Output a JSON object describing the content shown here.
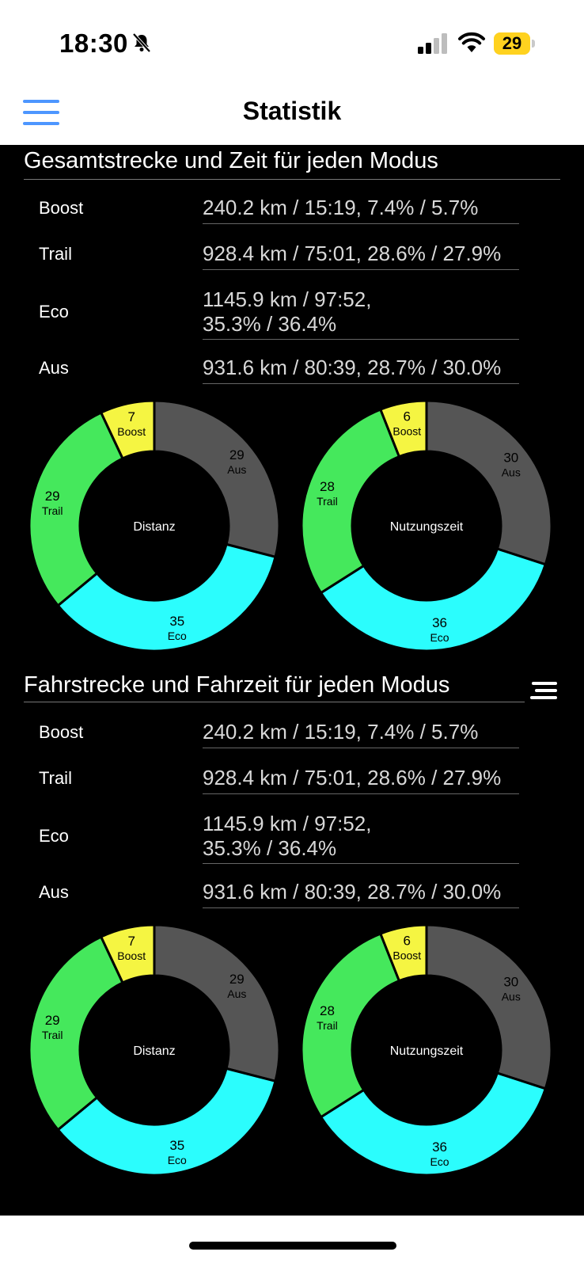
{
  "status_bar": {
    "time": "18:30",
    "battery": "29"
  },
  "nav": {
    "title": "Statistik"
  },
  "colors": {
    "boost": "#f5f542",
    "trail": "#45e85c",
    "eco": "#2bfdfd",
    "aus": "#555555",
    "background": "#000000"
  },
  "sections": [
    {
      "title": "Gesamtstrecke und Zeit für jeden Modus",
      "rows": [
        {
          "label": "Boost",
          "value_lines": [
            "240.2 km / 15:19, 7.4% / 5.7%"
          ]
        },
        {
          "label": "Trail",
          "value_lines": [
            "928.4 km / 75:01, 28.6% / 27.9%"
          ]
        },
        {
          "label": "Eco",
          "value_lines": [
            "1145.9 km / 97:52,",
            "35.3% / 36.4%"
          ]
        },
        {
          "label": "Aus",
          "value_lines": [
            "931.6 km / 80:39, 28.7% / 30.0%"
          ]
        }
      ],
      "charts": [
        {
          "center_label": "Distanz",
          "segments": [
            {
              "name": "Aus",
              "value": 29
            },
            {
              "name": "Eco",
              "value": 35
            },
            {
              "name": "Trail",
              "value": 29
            },
            {
              "name": "Boost",
              "value": 7
            }
          ]
        },
        {
          "center_label": "Nutzungszeit",
          "segments": [
            {
              "name": "Aus",
              "value": 30
            },
            {
              "name": "Eco",
              "value": 36
            },
            {
              "name": "Trail",
              "value": 28
            },
            {
              "name": "Boost",
              "value": 6
            }
          ]
        }
      ]
    },
    {
      "title": "Fahrstrecke und Fahrzeit für jeden Modus",
      "rows": [
        {
          "label": "Boost",
          "value_lines": [
            "240.2 km / 15:19, 7.4% / 5.7%"
          ]
        },
        {
          "label": "Trail",
          "value_lines": [
            "928.4 km / 75:01, 28.6% / 27.9%"
          ]
        },
        {
          "label": "Eco",
          "value_lines": [
            "1145.9 km / 97:52,",
            "35.3% / 36.4%"
          ]
        },
        {
          "label": "Aus",
          "value_lines": [
            "931.6 km / 80:39, 28.7% / 30.0%"
          ]
        }
      ],
      "charts": [
        {
          "center_label": "Distanz",
          "segments": [
            {
              "name": "Aus",
              "value": 29
            },
            {
              "name": "Eco",
              "value": 35
            },
            {
              "name": "Trail",
              "value": 29
            },
            {
              "name": "Boost",
              "value": 7
            }
          ]
        },
        {
          "center_label": "Nutzungszeit",
          "segments": [
            {
              "name": "Aus",
              "value": 30
            },
            {
              "name": "Eco",
              "value": 36
            },
            {
              "name": "Trail",
              "value": 28
            },
            {
              "name": "Boost",
              "value": 6
            }
          ]
        }
      ]
    }
  ],
  "chart_data": [
    {
      "type": "pie",
      "title": "Distanz",
      "categories": [
        "Aus",
        "Eco",
        "Trail",
        "Boost"
      ],
      "values": [
        29,
        35,
        29,
        7
      ]
    },
    {
      "type": "pie",
      "title": "Nutzungszeit",
      "categories": [
        "Aus",
        "Eco",
        "Trail",
        "Boost"
      ],
      "values": [
        30,
        36,
        28,
        6
      ]
    },
    {
      "type": "pie",
      "title": "Distanz",
      "categories": [
        "Aus",
        "Eco",
        "Trail",
        "Boost"
      ],
      "values": [
        29,
        35,
        29,
        7
      ]
    },
    {
      "type": "pie",
      "title": "Nutzungszeit",
      "categories": [
        "Aus",
        "Eco",
        "Trail",
        "Boost"
      ],
      "values": [
        30,
        36,
        28,
        6
      ]
    }
  ]
}
